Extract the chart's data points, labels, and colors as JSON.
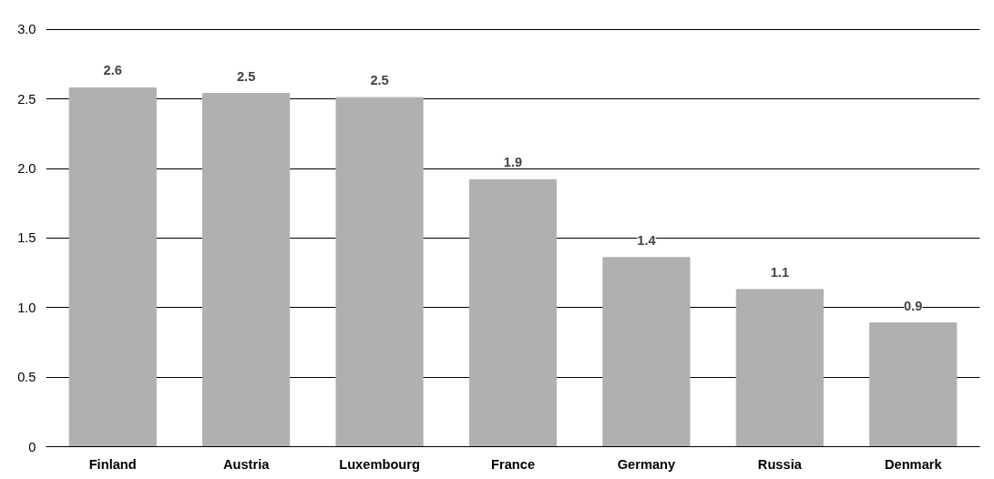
{
  "chart_data": {
    "type": "bar",
    "categories": [
      "Finland",
      "Austria",
      "Luxembourg",
      "France",
      "Germany",
      "Russia",
      "Denmark"
    ],
    "values": [
      2.58,
      2.54,
      2.51,
      1.92,
      1.36,
      1.13,
      0.89
    ],
    "value_labels": [
      "2.6",
      "2.5",
      "2.5",
      "1.9",
      "1.4",
      "1.1",
      "0.9"
    ],
    "color": "#b0b0b0",
    "ylim": [
      0,
      3.0
    ],
    "yticks": [
      0,
      0.5,
      {
        "value": 1,
        "label": "1.0"
      },
      1.5,
      {
        "value": 2,
        "label": "2.0"
      },
      2.5,
      {
        "value": 3,
        "label": "3.0"
      }
    ],
    "grid": "y"
  }
}
